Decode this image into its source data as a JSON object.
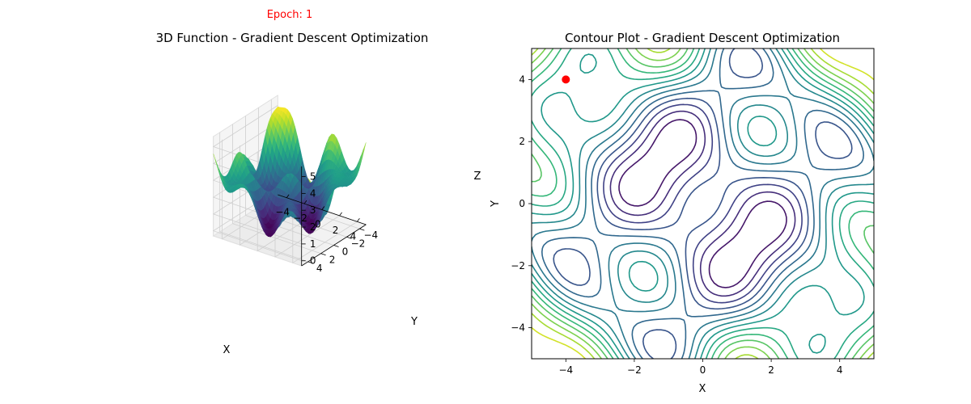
{
  "epoch_label": "Epoch: 1",
  "colors": {
    "epoch_text": "#ff0000",
    "marker": "#ff0000",
    "colormap": "viridis"
  },
  "chart_data": [
    {
      "type": "surface",
      "title": "3D Function - Gradient Descent Optimization",
      "xlabel": "X",
      "ylabel": "Y",
      "zlabel": "Z",
      "x_ticks": [
        -4,
        -2,
        0,
        2,
        4
      ],
      "y_ticks": [
        -4,
        -2,
        0,
        2,
        4
      ],
      "z_ticks": [
        0,
        1,
        2,
        3,
        4,
        5
      ],
      "xlim": [
        -5,
        5
      ],
      "ylim": [
        -5,
        5
      ],
      "zlim": [
        -0.3,
        5.6
      ],
      "grid": true
    },
    {
      "type": "contour",
      "title": "Contour Plot - Gradient Descent Optimization",
      "xlabel": "X",
      "ylabel": "Y",
      "x_ticks": [
        -4,
        -2,
        0,
        2,
        4
      ],
      "y_ticks": [
        -4,
        -2,
        0,
        2,
        4
      ],
      "xlim": [
        -5,
        5
      ],
      "ylim": [
        -5,
        5
      ],
      "current_point": {
        "x": -4,
        "y": 4
      },
      "grid": false
    }
  ]
}
